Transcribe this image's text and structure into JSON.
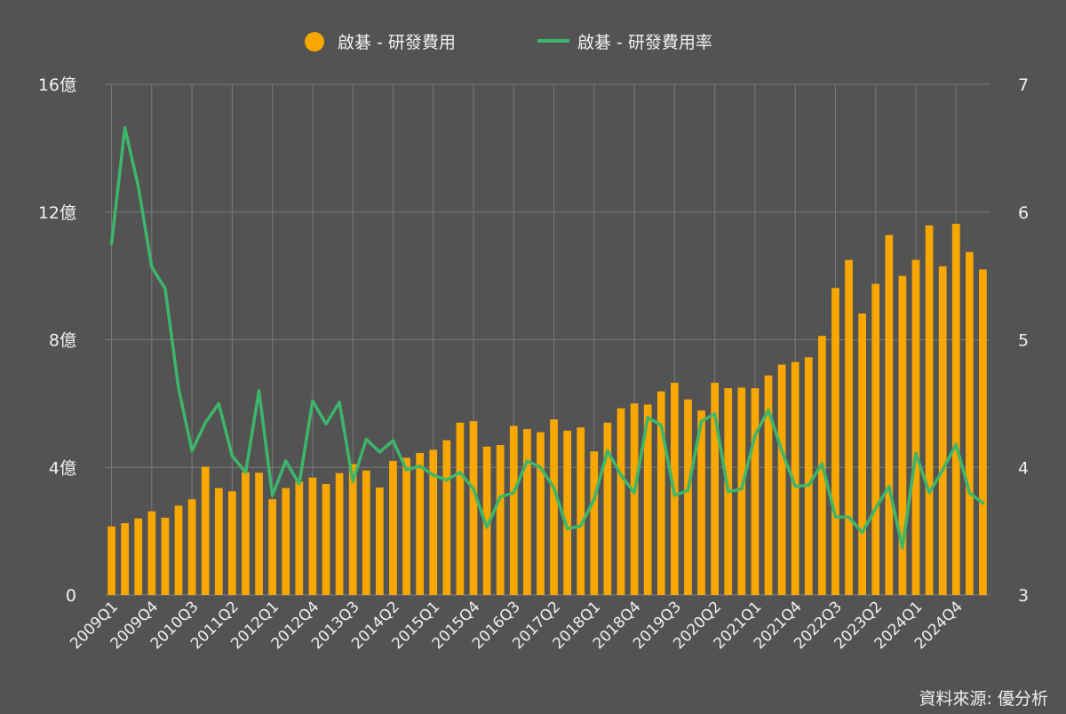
{
  "source_note": "資料來源: 優分析",
  "colors": {
    "background": "#535353",
    "bar": "#F7A700",
    "line": "#3DB66B",
    "grid": "#7A7A7A",
    "text": "#F0F0F0"
  },
  "chart_data": {
    "type": "bar",
    "title": "",
    "xlabel": "",
    "ylabel": "",
    "ylim": [
      0,
      1600000000
    ],
    "y2lim": [
      3,
      7
    ],
    "grid": true,
    "legend_position": "top-center",
    "y_ticks": [
      {
        "value": 0,
        "label": "0"
      },
      {
        "value": 400000000,
        "label": "4億"
      },
      {
        "value": 800000000,
        "label": "8億"
      },
      {
        "value": 1200000000,
        "label": "12億"
      },
      {
        "value": 1600000000,
        "label": "16億"
      }
    ],
    "y2_ticks": [
      {
        "value": 3,
        "label": "3"
      },
      {
        "value": 4,
        "label": "4"
      },
      {
        "value": 5,
        "label": "5"
      },
      {
        "value": 6,
        "label": "6"
      },
      {
        "value": 7,
        "label": "7"
      }
    ],
    "x_tick_labels": [
      "2009Q1",
      "2009Q4",
      "2010Q3",
      "2011Q2",
      "2012Q1",
      "2012Q4",
      "2013Q3",
      "2014Q2",
      "2015Q1",
      "2015Q4",
      "2016Q3",
      "2017Q2",
      "2018Q1",
      "2018Q4",
      "2019Q3",
      "2020Q2",
      "2021Q1",
      "2021Q4",
      "2022Q3",
      "2023Q2",
      "2024Q1",
      "2024Q4"
    ],
    "categories": [
      "2009Q1",
      "2009Q2",
      "2009Q3",
      "2009Q4",
      "2010Q1",
      "2010Q2",
      "2010Q3",
      "2010Q4",
      "2011Q1",
      "2011Q2",
      "2011Q3",
      "2011Q4",
      "2012Q1",
      "2012Q2",
      "2012Q3",
      "2012Q4",
      "2013Q1",
      "2013Q2",
      "2013Q3",
      "2013Q4",
      "2014Q1",
      "2014Q2",
      "2014Q3",
      "2014Q4",
      "2015Q1",
      "2015Q2",
      "2015Q3",
      "2015Q4",
      "2016Q1",
      "2016Q2",
      "2016Q3",
      "2016Q4",
      "2017Q1",
      "2017Q2",
      "2017Q3",
      "2017Q4",
      "2018Q1",
      "2018Q2",
      "2018Q3",
      "2018Q4",
      "2019Q1",
      "2019Q2",
      "2019Q3",
      "2019Q4",
      "2020Q1",
      "2020Q2",
      "2020Q3",
      "2020Q4",
      "2021Q1",
      "2021Q2",
      "2021Q3",
      "2021Q4",
      "2022Q1",
      "2022Q2",
      "2022Q3",
      "2022Q4",
      "2023Q1",
      "2023Q2",
      "2023Q3",
      "2023Q4",
      "2024Q1",
      "2024Q2",
      "2024Q3",
      "2024Q4",
      "2025Q1",
      "2025Q2"
    ],
    "series": [
      {
        "name": "啟碁 - 研發費用",
        "type": "bar",
        "axis": "left",
        "values": [
          215000000,
          225000000,
          240000000,
          262000000,
          242000000,
          280000000,
          300000000,
          402000000,
          335000000,
          325000000,
          385000000,
          383000000,
          300000000,
          335000000,
          355000000,
          368000000,
          348000000,
          382000000,
          410000000,
          390000000,
          337000000,
          420000000,
          430000000,
          445000000,
          455000000,
          485000000,
          540000000,
          545000000,
          465000000,
          470000000,
          530000000,
          520000000,
          510000000,
          550000000,
          515000000,
          525000000,
          450000000,
          540000000,
          585000000,
          600000000,
          597000000,
          638000000,
          665000000,
          613000000,
          578000000,
          665000000,
          648000000,
          650000000,
          648000000,
          688000000,
          722000000,
          730000000,
          745000000,
          812000000,
          962000000,
          1050000000,
          882000000,
          975000000,
          1128000000,
          1000000000,
          1050000000,
          1158000000,
          1030000000,
          1163000000,
          1075000000,
          1020000000
        ]
      },
      {
        "name": "啟碁 - 研發費用率",
        "type": "line",
        "axis": "right",
        "values": [
          5.75,
          6.66,
          6.2,
          5.57,
          5.4,
          4.62,
          4.13,
          4.35,
          4.5,
          4.09,
          3.96,
          4.6,
          3.78,
          4.05,
          3.87,
          4.52,
          4.34,
          4.51,
          3.89,
          4.22,
          4.12,
          4.21,
          3.98,
          4.01,
          3.94,
          3.9,
          3.96,
          3.83,
          3.53,
          3.77,
          3.8,
          4.05,
          4.0,
          3.84,
          3.52,
          3.54,
          3.75,
          4.13,
          3.94,
          3.8,
          4.39,
          4.33,
          3.78,
          3.82,
          4.36,
          4.42,
          3.81,
          3.83,
          4.25,
          4.45,
          4.13,
          3.85,
          3.86,
          4.03,
          3.61,
          3.61,
          3.49,
          3.68,
          3.85,
          3.37,
          4.11,
          3.8,
          3.98,
          4.18,
          3.8,
          3.72
        ]
      }
    ]
  }
}
